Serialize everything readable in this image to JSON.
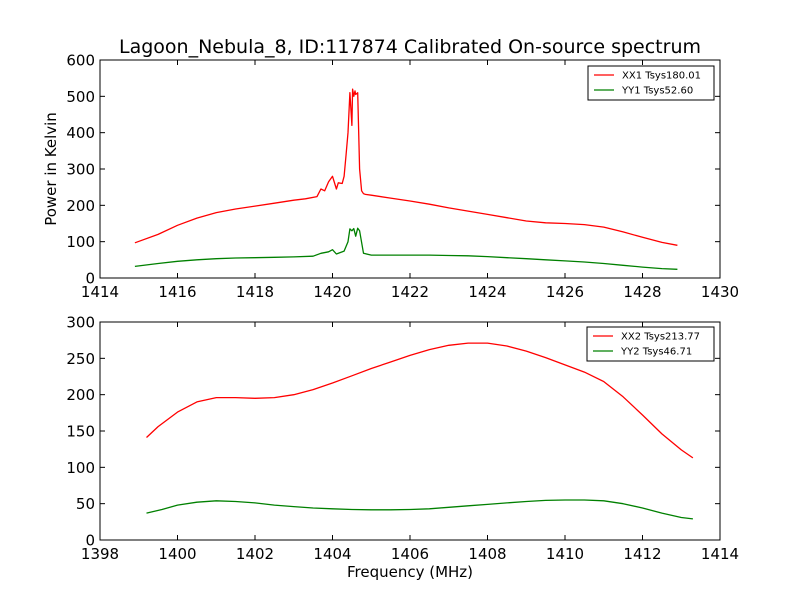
{
  "chart_data": [
    {
      "type": "line",
      "title": "Lagoon_Nebula_8, ID:117874 Calibrated On-source spectrum",
      "xlabel": "",
      "ylabel": "Power in Kelvin",
      "xlim": [
        1414,
        1430
      ],
      "ylim": [
        0,
        600
      ],
      "xticks": [
        "1414",
        "1416",
        "1418",
        "1420",
        "1422",
        "1424",
        "1426",
        "1428",
        "1430"
      ],
      "yticks": [
        "0",
        "100",
        "200",
        "300",
        "400",
        "500",
        "600"
      ],
      "grid": false,
      "legend_placement": "top-right",
      "series": [
        {
          "name": "XX1 Tsys180.01",
          "color": "#ff0000",
          "x": [
            1414.9,
            1415.5,
            1416.0,
            1416.5,
            1417.0,
            1417.5,
            1418.0,
            1418.5,
            1419.0,
            1419.3,
            1419.6,
            1419.7,
            1419.8,
            1419.9,
            1420.0,
            1420.1,
            1420.15,
            1420.25,
            1420.3,
            1420.35,
            1420.4,
            1420.45,
            1420.5,
            1420.52,
            1420.55,
            1420.58,
            1420.6,
            1420.65,
            1420.7,
            1420.75,
            1420.8,
            1420.85,
            1421.0,
            1421.5,
            1422.0,
            1422.5,
            1423.0,
            1423.5,
            1424.0,
            1424.5,
            1425.0,
            1425.5,
            1426.0,
            1426.5,
            1427.0,
            1427.5,
            1428.0,
            1428.5,
            1428.9
          ],
          "y": [
            97,
            120,
            145,
            165,
            180,
            190,
            198,
            206,
            214,
            218,
            224,
            245,
            240,
            265,
            280,
            245,
            262,
            260,
            280,
            340,
            400,
            510,
            420,
            520,
            500,
            515,
            505,
            510,
            300,
            240,
            232,
            230,
            228,
            220,
            212,
            203,
            193,
            184,
            175,
            166,
            157,
            152,
            150,
            147,
            140,
            127,
            112,
            98,
            90
          ]
        },
        {
          "name": "YY1 Tsys52.60",
          "color": "#008000",
          "x": [
            1414.9,
            1415.5,
            1416.0,
            1416.5,
            1417.0,
            1417.5,
            1418.0,
            1418.5,
            1419.0,
            1419.5,
            1419.7,
            1419.9,
            1420.0,
            1420.1,
            1420.3,
            1420.4,
            1420.45,
            1420.5,
            1420.55,
            1420.6,
            1420.65,
            1420.7,
            1420.8,
            1421.0,
            1421.5,
            1422.0,
            1422.5,
            1423.0,
            1423.5,
            1424.0,
            1424.5,
            1425.0,
            1425.5,
            1426.0,
            1426.5,
            1427.0,
            1427.5,
            1428.0,
            1428.5,
            1428.9
          ],
          "y": [
            32,
            40,
            46,
            50,
            53,
            55,
            56,
            57,
            58,
            60,
            68,
            72,
            78,
            66,
            74,
            100,
            135,
            130,
            136,
            115,
            137,
            130,
            68,
            63,
            63,
            63,
            63,
            62,
            61,
            59,
            56,
            53,
            50,
            47,
            44,
            40,
            35,
            30,
            26,
            24
          ]
        }
      ]
    },
    {
      "type": "line",
      "title": "",
      "xlabel": "Frequency (MHz)",
      "ylabel": "",
      "xlim": [
        1398,
        1414
      ],
      "ylim": [
        0,
        300
      ],
      "xticks": [
        "1398",
        "1400",
        "1402",
        "1404",
        "1406",
        "1408",
        "1410",
        "1412",
        "1414"
      ],
      "yticks": [
        "0",
        "50",
        "100",
        "150",
        "200",
        "250",
        "300"
      ],
      "grid": false,
      "legend_placement": "top-right",
      "series": [
        {
          "name": "XX2 Tsys213.77",
          "color": "#ff0000",
          "x": [
            1399.2,
            1399.5,
            1400.0,
            1400.5,
            1401.0,
            1401.5,
            1402.0,
            1402.5,
            1403.0,
            1403.5,
            1404.0,
            1404.5,
            1405.0,
            1405.5,
            1406.0,
            1406.5,
            1407.0,
            1407.5,
            1408.0,
            1408.5,
            1409.0,
            1409.5,
            1410.0,
            1410.5,
            1411.0,
            1411.5,
            1412.0,
            1412.5,
            1413.0,
            1413.3
          ],
          "y": [
            141,
            156,
            176,
            190,
            196,
            196,
            195,
            196,
            200,
            207,
            216,
            226,
            236,
            245,
            254,
            262,
            268,
            271,
            271,
            267,
            260,
            251,
            241,
            231,
            218,
            197,
            172,
            146,
            124,
            113
          ]
        },
        {
          "name": "YY2 Tsys46.71",
          "color": "#008000",
          "x": [
            1399.2,
            1399.6,
            1400.0,
            1400.5,
            1401.0,
            1401.5,
            1402.0,
            1402.5,
            1403.0,
            1403.5,
            1404.0,
            1404.5,
            1405.0,
            1405.5,
            1406.0,
            1406.5,
            1407.0,
            1407.5,
            1408.0,
            1408.5,
            1409.0,
            1409.5,
            1410.0,
            1410.5,
            1411.0,
            1411.5,
            1412.0,
            1412.5,
            1413.0,
            1413.3
          ],
          "y": [
            37,
            42,
            48,
            52,
            54,
            53,
            51,
            48,
            46,
            44,
            43,
            42,
            41.5,
            41.5,
            42,
            43,
            45,
            47,
            49,
            51,
            53,
            54.5,
            55,
            55,
            54,
            50,
            44,
            37,
            31,
            29
          ]
        }
      ]
    }
  ]
}
